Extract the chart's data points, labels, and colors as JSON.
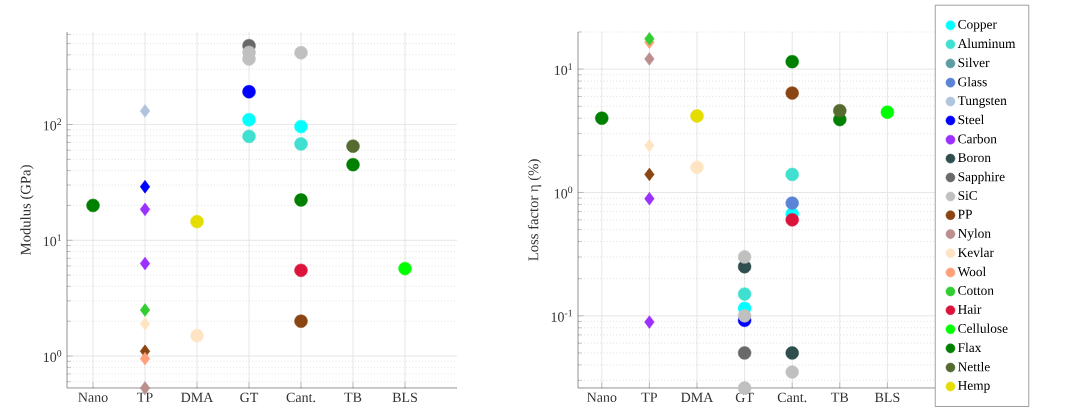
{
  "chart_data": [
    {
      "type": "scatter",
      "ylabel": "Modulus (GPa)",
      "categories": [
        "Nano",
        "TP",
        "DMA",
        "GT",
        "Cant.",
        "TB",
        "BLS"
      ],
      "log": true,
      "grid": true,
      "legend": false,
      "ylim": [
        0.53,
        630
      ],
      "yticks": [
        {
          "value": 1,
          "label": "10$^{0}$"
        },
        {
          "value": 10,
          "label": "10$^{1}$"
        },
        {
          "value": 100,
          "label": "10$^{2}$"
        }
      ],
      "series": [
        {
          "color": "#00ffff",
          "marker": "circle",
          "values": [
            null,
            null,
            null,
            110,
            96,
            null,
            null
          ]
        },
        {
          "color": "#40e0d0",
          "marker": "circle",
          "values": [
            null,
            null,
            null,
            79,
            68,
            null,
            null
          ]
        },
        {
          "color": "#b0c4de",
          "marker": "diamond",
          "values": [
            null,
            131,
            null,
            null,
            null,
            null,
            null
          ]
        },
        {
          "color": "#0000ff",
          "marker": "circle",
          "values": [
            null,
            null,
            null,
            192,
            null,
            null,
            null
          ]
        },
        {
          "color": "#0000ff",
          "marker": "diamond",
          "values": [
            null,
            29,
            null,
            null,
            null,
            null,
            null
          ]
        },
        {
          "color": "#9b30ff",
          "marker": "diamond",
          "values": [
            null,
            18.5,
            null,
            null,
            null,
            null,
            null
          ]
        },
        {
          "color": "#9b30ff",
          "marker": "diamond",
          "values": [
            null,
            6.3,
            null,
            null,
            null,
            null,
            null
          ]
        },
        {
          "color": "#696969",
          "marker": "circle",
          "values": [
            null,
            null,
            null,
            480,
            null,
            null,
            null
          ]
        },
        {
          "color": "#c0c0c0",
          "marker": "circle",
          "values": [
            null,
            null,
            null,
            420,
            417,
            null,
            null
          ]
        },
        {
          "color": "#c0c0c0",
          "marker": "circle",
          "values": [
            null,
            null,
            null,
            368,
            null,
            null,
            null
          ]
        },
        {
          "color": "#8b4513",
          "marker": "circle",
          "values": [
            null,
            null,
            null,
            null,
            2.0,
            null,
            null
          ]
        },
        {
          "color": "#8b4513",
          "marker": "diamond",
          "values": [
            null,
            1.1,
            null,
            null,
            null,
            null,
            null
          ]
        },
        {
          "color": "#bc8f8f",
          "marker": "diamond",
          "values": [
            null,
            0.53,
            null,
            null,
            null,
            null,
            null
          ]
        },
        {
          "color": "#ffe4c4",
          "marker": "circle",
          "values": [
            null,
            null,
            1.5,
            null,
            null,
            null,
            null
          ]
        },
        {
          "color": "#ffe4c4",
          "marker": "diamond",
          "values": [
            null,
            1.9,
            null,
            null,
            null,
            null,
            null
          ]
        },
        {
          "color": "#ffa07a",
          "marker": "diamond",
          "values": [
            null,
            0.95,
            null,
            null,
            null,
            null,
            null
          ]
        },
        {
          "color": "#32cd32",
          "marker": "diamond",
          "values": [
            null,
            2.5,
            null,
            null,
            null,
            null,
            null
          ]
        },
        {
          "color": "#dc143c",
          "marker": "circle",
          "values": [
            null,
            null,
            null,
            null,
            5.5,
            null,
            null
          ]
        },
        {
          "color": "#00ff00",
          "marker": "circle",
          "values": [
            null,
            null,
            null,
            null,
            null,
            null,
            5.7
          ]
        },
        {
          "color": "#008000",
          "marker": "circle",
          "values": [
            20,
            null,
            null,
            null,
            22.3,
            45,
            null
          ]
        },
        {
          "color": "#556b2f",
          "marker": "circle",
          "values": [
            null,
            null,
            null,
            null,
            null,
            65,
            null
          ]
        },
        {
          "color": "#e5dc00",
          "marker": "circle",
          "values": [
            null,
            null,
            14.5,
            null,
            null,
            null,
            null
          ]
        }
      ]
    },
    {
      "type": "scatter",
      "ylabel": "Loss factor η (%)",
      "categories": [
        "Nano",
        "TP",
        "DMA",
        "GT",
        "Cant.",
        "TB",
        "BLS"
      ],
      "log": true,
      "grid": true,
      "legend": "right",
      "ylim": [
        0.026,
        20
      ],
      "yticks": [
        {
          "value": 0.1,
          "label": "10$^{-1}$"
        },
        {
          "value": 1,
          "label": "10$^{0}$"
        },
        {
          "value": 10,
          "label": "10$^{1}$"
        }
      ],
      "series": [
        {
          "name": "Copper",
          "color": "#00ffff",
          "marker": "circle",
          "values": [
            null,
            null,
            null,
            0.115,
            0.67,
            null,
            null
          ]
        },
        {
          "name": "Aluminum",
          "color": "#40e0d0",
          "marker": "circle",
          "values": [
            null,
            null,
            null,
            0.15,
            1.4,
            null,
            null
          ]
        },
        {
          "name": "Silver",
          "color": "#5f9ea0",
          "marker": "circle",
          "values": [
            null,
            null,
            null,
            null,
            null,
            null,
            null
          ]
        },
        {
          "name": "Glass",
          "color": "#5b84d6",
          "marker": "circle",
          "values": [
            null,
            null,
            null,
            null,
            0.82,
            null,
            null
          ]
        },
        {
          "name": "Tungsten",
          "color": "#b0c4de",
          "marker": "circle",
          "values": [
            null,
            null,
            null,
            null,
            null,
            null,
            null
          ]
        },
        {
          "name": "Steel",
          "color": "#0000ff",
          "marker": "circle",
          "values": [
            null,
            null,
            null,
            0.092,
            null,
            null,
            null
          ]
        },
        {
          "name": "Carbon",
          "color": "#9b30ff",
          "marker": "circle",
          "values": [
            null,
            null,
            null,
            null,
            null,
            null,
            null
          ]
        },
        {
          "color": "#9b30ff",
          "marker": "diamond",
          "values": [
            null,
            0.89,
            null,
            null,
            null,
            null,
            null
          ]
        },
        {
          "color": "#9b30ff",
          "marker": "diamond",
          "values": [
            null,
            0.089,
            null,
            null,
            null,
            null,
            null
          ]
        },
        {
          "name": "Boron",
          "color": "#2f4f4f",
          "marker": "circle",
          "values": [
            null,
            null,
            null,
            0.25,
            0.05,
            null,
            null
          ]
        },
        {
          "name": "Sapphire",
          "color": "#696969",
          "marker": "circle",
          "values": [
            null,
            null,
            null,
            0.05,
            null,
            null,
            null
          ]
        },
        {
          "name": "SiC",
          "color": "#c0c0c0",
          "marker": "circle",
          "values": [
            null,
            null,
            null,
            0.3,
            0.035,
            null,
            null
          ]
        },
        {
          "color": "#c0c0c0",
          "marker": "circle",
          "values": [
            null,
            null,
            null,
            0.1,
            null,
            null,
            null
          ]
        },
        {
          "color": "#c0c0c0",
          "marker": "circle",
          "values": [
            null,
            null,
            null,
            0.026,
            null,
            null,
            null
          ]
        },
        {
          "name": "PP",
          "color": "#8b4513",
          "marker": "circle",
          "values": [
            null,
            null,
            null,
            null,
            6.4,
            null,
            null
          ]
        },
        {
          "color": "#8b4513",
          "marker": "diamond",
          "values": [
            null,
            1.4,
            null,
            null,
            null,
            null,
            null
          ]
        },
        {
          "name": "Nylon",
          "color": "#bc8f8f",
          "marker": "circle",
          "values": [
            null,
            null,
            null,
            null,
            null,
            null,
            null
          ]
        },
        {
          "color": "#bc8f8f",
          "marker": "diamond",
          "values": [
            null,
            12.1,
            null,
            null,
            null,
            null,
            null
          ]
        },
        {
          "name": "Kevlar",
          "color": "#ffe4c4",
          "marker": "circle",
          "values": [
            null,
            null,
            1.6,
            null,
            null,
            null,
            null
          ]
        },
        {
          "color": "#ffe4c4",
          "marker": "diamond",
          "values": [
            null,
            2.4,
            null,
            null,
            null,
            null,
            null
          ]
        },
        {
          "name": "Wool",
          "color": "#ffa07a",
          "marker": "circle",
          "values": [
            null,
            null,
            null,
            null,
            null,
            null,
            null
          ]
        },
        {
          "color": "#ffa07a",
          "marker": "diamond",
          "values": [
            null,
            16.5,
            null,
            null,
            null,
            null,
            null
          ]
        },
        {
          "name": "Cotton",
          "color": "#32cd32",
          "marker": "circle",
          "values": [
            null,
            null,
            null,
            null,
            null,
            null,
            null
          ]
        },
        {
          "color": "#32cd32",
          "marker": "diamond",
          "values": [
            null,
            17.6,
            null,
            null,
            null,
            null,
            null
          ]
        },
        {
          "name": "Hair",
          "color": "#dc143c",
          "marker": "circle",
          "values": [
            null,
            null,
            null,
            null,
            0.6,
            null,
            null
          ]
        },
        {
          "name": "Cellulose",
          "color": "#00ff00",
          "marker": "circle",
          "values": [
            null,
            null,
            null,
            null,
            null,
            null,
            4.47
          ]
        },
        {
          "name": "Flax",
          "color": "#008000",
          "marker": "circle",
          "values": [
            4.0,
            null,
            null,
            null,
            11.5,
            3.9,
            null
          ]
        },
        {
          "name": "Nettle",
          "color": "#556b2f",
          "marker": "circle",
          "values": [
            null,
            null,
            null,
            null,
            null,
            4.6,
            null
          ]
        },
        {
          "name": "Hemp",
          "color": "#e5dc00",
          "marker": "circle",
          "values": [
            null,
            null,
            4.17,
            null,
            null,
            null,
            null
          ]
        }
      ]
    }
  ]
}
